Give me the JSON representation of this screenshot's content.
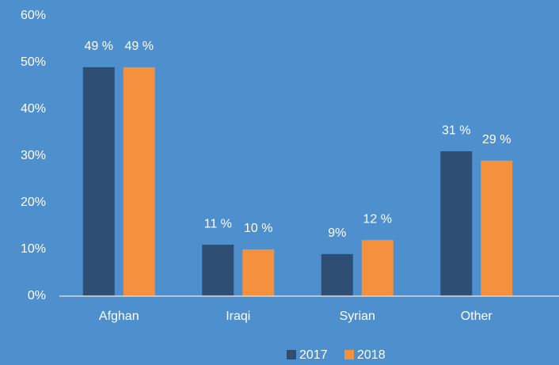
{
  "chart_data": {
    "type": "bar",
    "categories": [
      "Afghan",
      "Iraqi",
      "Syrian",
      "Other"
    ],
    "series": [
      {
        "name": "2017",
        "color": "#2f4e74",
        "values": [
          49,
          11,
          9,
          31
        ],
        "value_labels": [
          "49 %",
          "11 %",
          "9%",
          "31 %"
        ]
      },
      {
        "name": "2018",
        "color": "#f5913e",
        "values": [
          49,
          10,
          12,
          29
        ],
        "value_labels": [
          "49 %",
          "10 %",
          "12 %",
          "29 %"
        ]
      }
    ],
    "ylim": [
      0,
      60
    ],
    "yticks": [
      {
        "value": 0,
        "label": "0%"
      },
      {
        "value": 10,
        "label": "10%"
      },
      {
        "value": 20,
        "label": "20%"
      },
      {
        "value": 30,
        "label": "30%"
      },
      {
        "value": 40,
        "label": "40%"
      },
      {
        "value": 50,
        "label": "50%"
      },
      {
        "value": 60,
        "label": "60%"
      }
    ],
    "legend": "bottom",
    "grid": false
  }
}
